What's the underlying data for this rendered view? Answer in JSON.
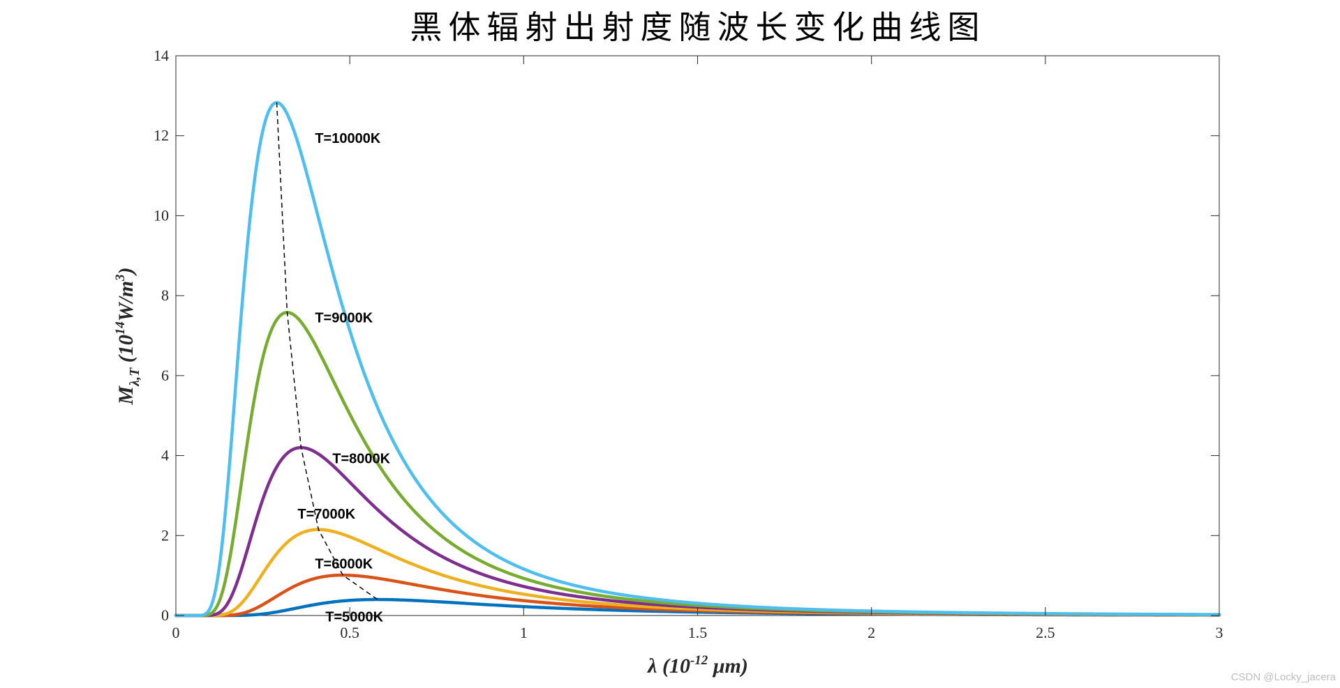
{
  "chart_data": {
    "type": "line",
    "title": "黑体辐射出射度随波长变化曲线图",
    "xlabel": {
      "prefix": "λ (10",
      "exponent": "-12",
      "suffix": " μm)"
    },
    "ylabel": {
      "prefix": "M",
      "subscript": "λ,T",
      "middle": " (10",
      "exponent": "14",
      "unit": "W/m",
      "unit_exponent": "3",
      "suffix": ")"
    },
    "xlim": [
      0,
      3
    ],
    "ylim": [
      0,
      14
    ],
    "x_ticks": [
      0,
      0.5,
      1,
      1.5,
      2,
      2.5,
      3
    ],
    "x_tick_labels": [
      "0",
      "0.5",
      "1",
      "1.5",
      "2",
      "2.5",
      "3"
    ],
    "y_ticks": [
      0,
      2,
      4,
      6,
      8,
      10,
      12,
      14
    ],
    "y_tick_labels": [
      "0",
      "2",
      "4",
      "6",
      "8",
      "10",
      "12",
      "14"
    ],
    "grid": false,
    "legend": "none",
    "series": [
      {
        "name": "T=5000K",
        "temperature": 5000,
        "peak_x": 0.58,
        "peak_y": 0.4,
        "color": "#0072BD",
        "label": "T=5000K",
        "label_at": [
          0.43,
          -0.15
        ]
      },
      {
        "name": "T=6000K",
        "temperature": 6000,
        "peak_x": 0.48,
        "peak_y": 1.01,
        "color": "#D95319",
        "label": "T=6000K",
        "label_at": [
          0.4,
          1.18
        ]
      },
      {
        "name": "T=7000K",
        "temperature": 7000,
        "peak_x": 0.41,
        "peak_y": 2.15,
        "color": "#EDB120",
        "label": "T=7000K",
        "label_at": [
          0.35,
          2.42
        ]
      },
      {
        "name": "T=8000K",
        "temperature": 8000,
        "peak_x": 0.36,
        "peak_y": 4.2,
        "color": "#7E2F8E",
        "label": "T=8000K",
        "label_at": [
          0.45,
          3.81
        ]
      },
      {
        "name": "T=9000K",
        "temperature": 9000,
        "peak_x": 0.32,
        "peak_y": 7.58,
        "color": "#77AC30",
        "label": "T=9000K",
        "label_at": [
          0.4,
          7.33
        ]
      },
      {
        "name": "T=10000K",
        "temperature": 10000,
        "peak_x": 0.29,
        "peak_y": 12.83,
        "color": "#4DBEEE",
        "label": "T=10000K",
        "label_at": [
          0.4,
          11.82
        ]
      }
    ],
    "peak_locus": {
      "style": "dashed",
      "color": "#000000",
      "x": [
        0.29,
        0.32,
        0.36,
        0.41,
        0.48,
        0.58
      ],
      "y": [
        12.83,
        7.58,
        4.2,
        2.15,
        1.01,
        0.4
      ]
    }
  },
  "watermark": "CSDN @Locky_jacera"
}
